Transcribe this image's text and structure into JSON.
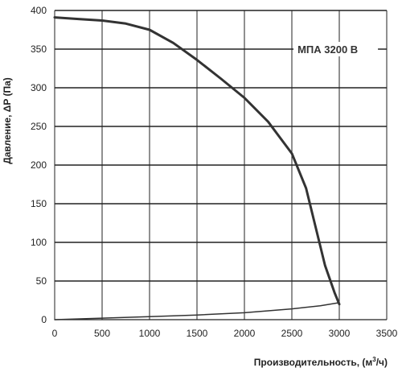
{
  "chart_data": {
    "type": "line",
    "title": "",
    "xlabel": "Производительность, (м",
    "xlabel_sup": "3",
    "xlabel_suffix": "/ч)",
    "ylabel": "Давление, ΔP (Па)",
    "xlim": [
      0,
      3500
    ],
    "ylim": [
      0,
      400
    ],
    "xticks": [
      0,
      500,
      1000,
      1500,
      2000,
      2500,
      3000,
      3500
    ],
    "yticks": [
      0,
      50,
      100,
      150,
      200,
      250,
      300,
      350,
      400
    ],
    "grid": true,
    "series_label": "МПА 3200 В",
    "series": [
      {
        "name": "МПА 3200 В",
        "color": "#333333",
        "points": [
          [
            0,
            391
          ],
          [
            250,
            389
          ],
          [
            500,
            387
          ],
          [
            750,
            383
          ],
          [
            1000,
            375
          ],
          [
            1250,
            358
          ],
          [
            1500,
            336
          ],
          [
            1750,
            312
          ],
          [
            2000,
            287
          ],
          [
            2250,
            256
          ],
          [
            2500,
            215
          ],
          [
            2650,
            170
          ],
          [
            2750,
            120
          ],
          [
            2850,
            70
          ],
          [
            2950,
            35
          ],
          [
            3000,
            20
          ]
        ]
      },
      {
        "name": "",
        "color": "#333333",
        "points": [
          [
            0,
            0
          ],
          [
            500,
            2
          ],
          [
            1000,
            4
          ],
          [
            1500,
            6
          ],
          [
            2000,
            9
          ],
          [
            2500,
            14
          ],
          [
            2800,
            18
          ],
          [
            3000,
            22
          ]
        ]
      }
    ]
  }
}
